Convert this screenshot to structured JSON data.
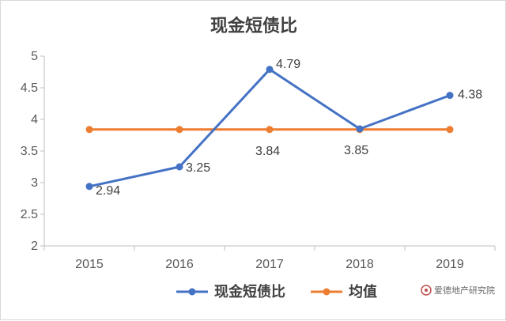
{
  "chart_data": {
    "type": "line",
    "title": "现金短债比",
    "categories": [
      "2015",
      "2016",
      "2017",
      "2018",
      "2019"
    ],
    "ylim": [
      2,
      5
    ],
    "yticks": [
      "2",
      "2.5",
      "3",
      "3.5",
      "4",
      "4.5",
      "5"
    ],
    "grid": false,
    "legend_position": "bottom",
    "series": [
      {
        "name": "现金短债比",
        "color": "#4472c4",
        "values": [
          2.94,
          3.25,
          4.79,
          3.85,
          4.38
        ],
        "labels": [
          "2.94",
          "3.25",
          "4.79",
          "3.85",
          "4.38"
        ]
      },
      {
        "name": "均值",
        "color": "#ed7d31",
        "values": [
          3.84,
          3.84,
          3.84,
          3.84,
          3.84
        ],
        "labels": [
          "",
          "",
          "3.84",
          "",
          ""
        ]
      }
    ]
  },
  "watermark": {
    "text": "爱德地产研究院",
    "icon": "logo-icon",
    "color": "#c0504d"
  }
}
